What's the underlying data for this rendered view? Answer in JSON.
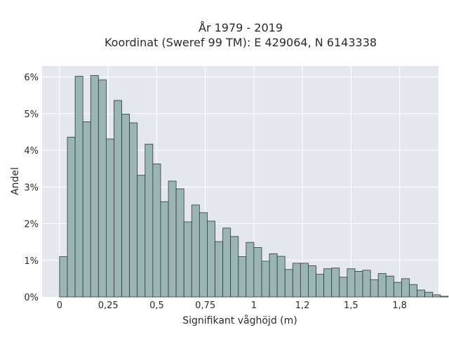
{
  "chart_data": {
    "type": "bar",
    "title": "År 1979 - 2019",
    "subtitle": "Koordinat (Sweref 99 TM): E 429064, N 6143338",
    "xlabel": "Signifikant våghöjd (m)",
    "ylabel": "Andel",
    "xlim": [
      -0.09,
      1.95
    ],
    "ylim": [
      0,
      6.3
    ],
    "x_ticks": [
      {
        "value": 0,
        "label": "0"
      },
      {
        "value": 0.25,
        "label": "0,25"
      },
      {
        "value": 0.5,
        "label": "0,5"
      },
      {
        "value": 0.75,
        "label": "0,75"
      },
      {
        "value": 1,
        "label": "1"
      },
      {
        "value": 1.25,
        "label": "1,2"
      },
      {
        "value": 1.5,
        "label": "1,5"
      },
      {
        "value": 1.75,
        "label": "1,8"
      }
    ],
    "y_ticks": [
      {
        "value": 0,
        "label": "0%"
      },
      {
        "value": 1,
        "label": "1%"
      },
      {
        "value": 2,
        "label": "2%"
      },
      {
        "value": 3,
        "label": "3%"
      },
      {
        "value": 4,
        "label": "4%"
      },
      {
        "value": 5,
        "label": "5%"
      },
      {
        "value": 6,
        "label": "6%"
      }
    ],
    "grid": true,
    "bin_start": 0,
    "bin_width": 0.04,
    "values": [
      1.1,
      4.36,
      6.02,
      4.78,
      6.04,
      5.92,
      4.31,
      5.36,
      4.99,
      4.75,
      3.32,
      4.17,
      3.63,
      2.6,
      3.16,
      2.95,
      2.05,
      2.51,
      2.3,
      2.07,
      1.51,
      1.88,
      1.65,
      1.1,
      1.49,
      1.35,
      0.98,
      1.18,
      1.11,
      0.75,
      0.92,
      0.92,
      0.85,
      0.62,
      0.77,
      0.79,
      0.54,
      0.77,
      0.7,
      0.73,
      0.47,
      0.64,
      0.57,
      0.4,
      0.5,
      0.34,
      0.19,
      0.13,
      0.06,
      0.02
    ],
    "colors": {
      "bar_fill": "#9bb5b3",
      "bar_stroke": "#2f3a3a",
      "plot_background": "#e5e7ef",
      "grid": "#ffffff"
    }
  }
}
